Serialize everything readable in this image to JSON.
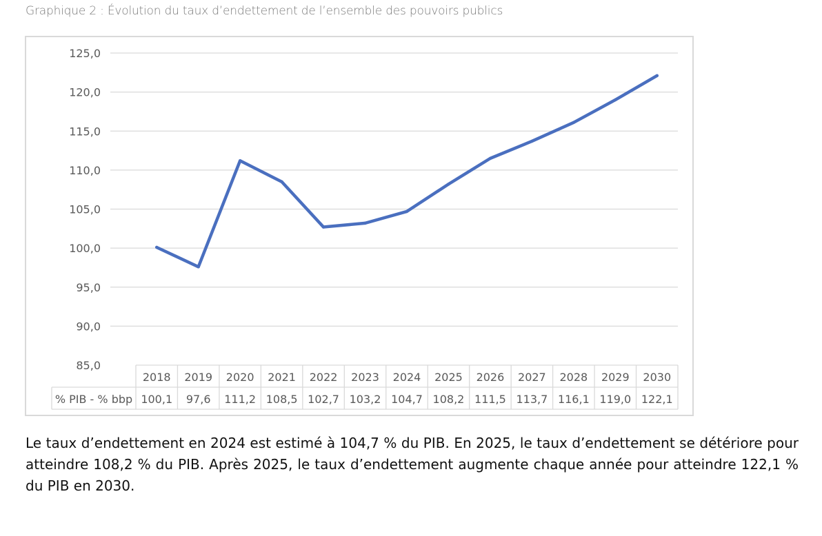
{
  "caption": "Graphique 2 : Évolution du taux d’endettement de l’ensemble des pouvoirs publics",
  "chart_data": {
    "type": "line",
    "title": "Graphique 2 : Évolution du taux d’endettement de l’ensemble des pouvoirs publics",
    "categories": [
      "2018",
      "2019",
      "2020",
      "2021",
      "2022",
      "2023",
      "2024",
      "2025",
      "2026",
      "2027",
      "2028",
      "2029",
      "2030"
    ],
    "series": [
      {
        "name": "% PIB - % bbp",
        "values": [
          100.1,
          97.6,
          111.2,
          108.5,
          102.7,
          103.2,
          104.7,
          108.2,
          111.5,
          113.7,
          116.1,
          119.0,
          122.1
        ],
        "labels": [
          "100,1",
          "97,6",
          "111,2",
          "108,5",
          "102,7",
          "103,2",
          "104,7",
          "108,2",
          "111,5",
          "113,7",
          "116,1",
          "119,0",
          "122,1"
        ],
        "color": "#4a6fbf"
      }
    ],
    "ylim": [
      85,
      125
    ],
    "yticks": [
      85,
      90,
      95,
      100,
      105,
      110,
      115,
      120,
      125
    ],
    "ytick_labels": [
      "85,0",
      "90,0",
      "95,0",
      "100,0",
      "105,0",
      "110,0",
      "115,0",
      "120,0",
      "125,0"
    ],
    "grid": true,
    "data_table": true,
    "xlabel": "",
    "ylabel": ""
  },
  "paragraph": "Le taux d’endettement en 2024 est estimé à 104,7 % du PIB. En 2025, le taux d’endettement se détériore pour atteindre 108,2 % du PIB. Après 2025, le taux d’endettement augmente chaque année pour atteindre 122,1 % du PIB en 2030."
}
